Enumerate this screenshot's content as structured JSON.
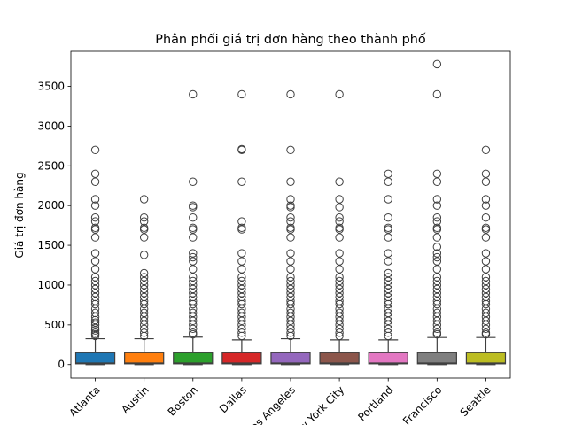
{
  "chart_data": {
    "type": "box",
    "title": "Phân phối giá trị đơn hàng theo thành phố",
    "xlabel": "",
    "ylabel": "Giá trị đơn hàng",
    "ylim": [
      -170,
      3940
    ],
    "yticks": [
      0,
      500,
      1000,
      1500,
      2000,
      2500,
      3000,
      3500
    ],
    "categories": [
      "Atlanta",
      "Austin",
      "Boston",
      "Dallas",
      "Los Angeles",
      "New York City",
      "Portland",
      "San Francisco",
      "Seattle"
    ],
    "series": [
      {
        "category": "Atlanta",
        "color": "#1f77b4",
        "min": 0,
        "q1": 10,
        "median": 20,
        "q3": 150,
        "max": 325,
        "outliers": [
          360,
          380,
          400,
          430,
          460,
          500,
          530,
          560,
          600,
          650,
          700,
          760,
          800,
          850,
          900,
          950,
          1000,
          1050,
          1100,
          1200,
          1300,
          1400,
          1600,
          1700,
          1720,
          1800,
          1850,
          2000,
          2080,
          2300,
          2400,
          2700
        ]
      },
      {
        "category": "Austin",
        "color": "#ff7f0e",
        "min": 0,
        "q1": 10,
        "median": 20,
        "q3": 150,
        "max": 325,
        "outliers": [
          360,
          400,
          450,
          500,
          550,
          600,
          650,
          700,
          760,
          800,
          850,
          900,
          950,
          1000,
          1050,
          1100,
          1150,
          1380,
          1600,
          1700,
          1720,
          1800,
          1850,
          2080
        ]
      },
      {
        "category": "Boston",
        "color": "#2ca02c",
        "min": 0,
        "q1": 10,
        "median": 20,
        "q3": 150,
        "max": 345,
        "outliers": [
          380,
          400,
          450,
          500,
          550,
          600,
          650,
          700,
          760,
          800,
          850,
          900,
          950,
          1000,
          1050,
          1100,
          1200,
          1300,
          1350,
          1400,
          1600,
          1700,
          1720,
          1850,
          1980,
          2000,
          2300,
          3400
        ]
      },
      {
        "category": "Dallas",
        "color": "#d62728",
        "min": 0,
        "q1": 10,
        "median": 20,
        "q3": 150,
        "max": 310,
        "outliers": [
          360,
          400,
          450,
          500,
          550,
          600,
          650,
          700,
          760,
          800,
          850,
          900,
          950,
          1000,
          1050,
          1100,
          1200,
          1300,
          1400,
          1700,
          1720,
          1800,
          2300,
          2700,
          2710,
          3400
        ]
      },
      {
        "category": "Los Angeles",
        "color": "#9467bd",
        "min": 0,
        "q1": 10,
        "median": 20,
        "q3": 150,
        "max": 325,
        "outliers": [
          360,
          400,
          450,
          500,
          550,
          600,
          650,
          700,
          760,
          800,
          850,
          900,
          950,
          1000,
          1050,
          1100,
          1200,
          1300,
          1400,
          1600,
          1700,
          1720,
          1800,
          1850,
          1980,
          2000,
          2080,
          2300,
          2700,
          3400
        ]
      },
      {
        "category": "New York City",
        "color": "#8c564b",
        "min": 0,
        "q1": 10,
        "median": 20,
        "q3": 150,
        "max": 310,
        "outliers": [
          360,
          400,
          450,
          500,
          550,
          600,
          650,
          700,
          760,
          800,
          850,
          900,
          950,
          1000,
          1050,
          1100,
          1200,
          1300,
          1400,
          1600,
          1700,
          1720,
          1800,
          1850,
          1980,
          2080,
          2300,
          3400
        ]
      },
      {
        "category": "Portland",
        "color": "#e377c2",
        "min": 0,
        "q1": 10,
        "median": 20,
        "q3": 150,
        "max": 310,
        "outliers": [
          360,
          400,
          450,
          500,
          550,
          600,
          650,
          700,
          760,
          800,
          850,
          900,
          950,
          1000,
          1050,
          1100,
          1150,
          1300,
          1400,
          1600,
          1700,
          1720,
          1850,
          2080,
          2300,
          2400
        ]
      },
      {
        "category": "San Francisco",
        "color": "#7f7f7f",
        "min": 0,
        "q1": 10,
        "median": 20,
        "q3": 150,
        "max": 340,
        "outliers": [
          380,
          400,
          450,
          500,
          550,
          600,
          650,
          700,
          760,
          800,
          850,
          900,
          950,
          1000,
          1050,
          1100,
          1200,
          1300,
          1350,
          1400,
          1480,
          1600,
          1700,
          1720,
          1800,
          1850,
          2000,
          2080,
          2300,
          2400,
          3400,
          3780
        ]
      },
      {
        "category": "Seattle",
        "color": "#bcbd22",
        "min": 0,
        "q1": 10,
        "median": 20,
        "q3": 150,
        "max": 340,
        "outliers": [
          380,
          400,
          450,
          500,
          550,
          600,
          650,
          700,
          760,
          800,
          850,
          900,
          950,
          1000,
          1050,
          1100,
          1200,
          1300,
          1400,
          1600,
          1700,
          1720,
          1850,
          2000,
          2080,
          2300,
          2400,
          2700
        ]
      }
    ],
    "grid": false,
    "legend": "none"
  }
}
